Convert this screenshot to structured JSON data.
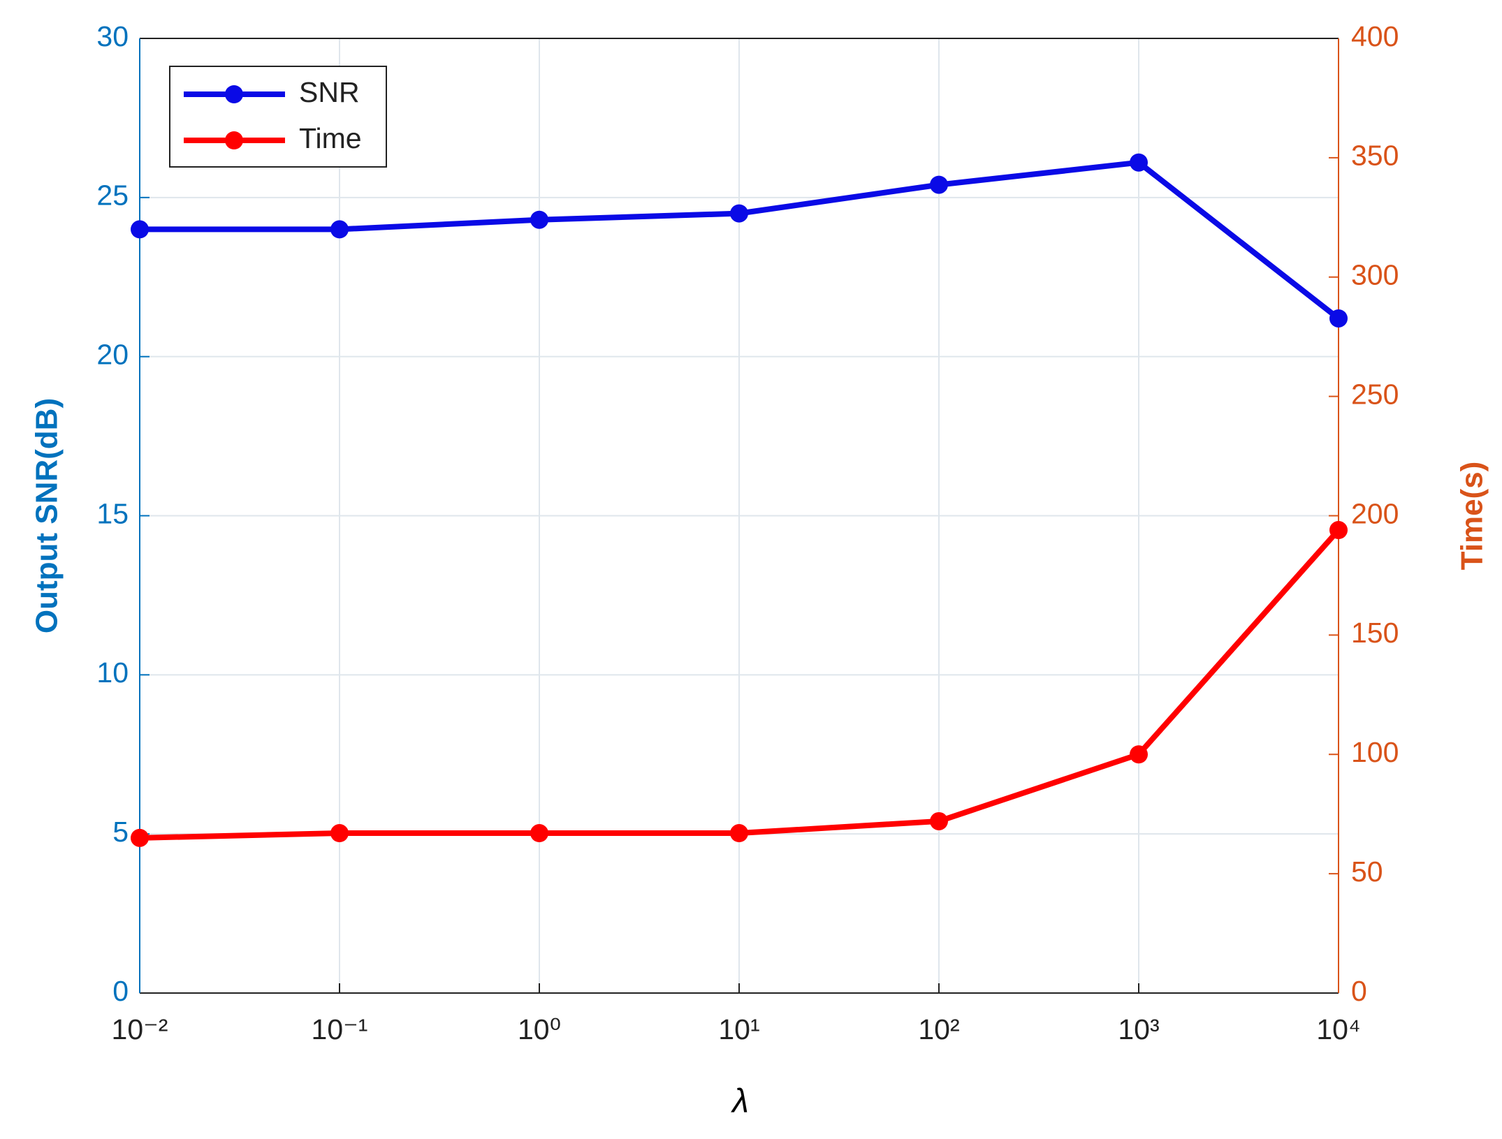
{
  "chart_data": {
    "type": "line",
    "x_label": "λ",
    "y_label": "Output SNR(dB)",
    "y2_label": "Time(s)",
    "x": [
      0.01,
      0.1,
      1,
      10,
      100,
      1000,
      10000
    ],
    "xscale": "log",
    "xlim": [
      0.01,
      10000
    ],
    "xticks": [
      {
        "value": 0.01,
        "label": "10⁻²"
      },
      {
        "value": 0.1,
        "label": "10⁻¹"
      },
      {
        "value": 1,
        "label": "10⁰"
      },
      {
        "value": 10,
        "label": "10¹"
      },
      {
        "value": 100,
        "label": "10²"
      },
      {
        "value": 1000,
        "label": "10³"
      },
      {
        "value": 10000,
        "label": "10⁴"
      }
    ],
    "ylim": [
      0,
      30
    ],
    "yticks": [
      0,
      5,
      10,
      15,
      20,
      25,
      30
    ],
    "y2lim": [
      0,
      400
    ],
    "y2ticks": [
      0,
      50,
      100,
      150,
      200,
      250,
      300,
      350,
      400
    ],
    "grid": true,
    "legend": "top-left",
    "y_axis_color": "#0072bd",
    "y2_axis_color": "#d95319",
    "series": [
      {
        "name": "SNR",
        "color": "#0a0ae6",
        "values": [
          24.0,
          24.0,
          24.3,
          24.5,
          25.4,
          26.1,
          21.2
        ]
      },
      {
        "name": "Time",
        "color": "#ff0000",
        "axis": "y2",
        "values": [
          65,
          67,
          67,
          67,
          72,
          100,
          194
        ]
      }
    ]
  }
}
